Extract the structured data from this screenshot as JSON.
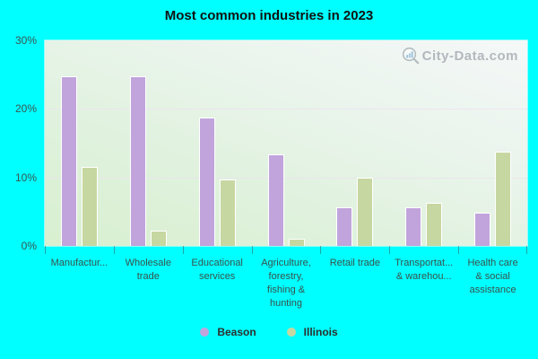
{
  "title": "Most common industries in 2023",
  "watermark": {
    "text": "City-Data.com",
    "icon": "magnifier-bar-chart-icon"
  },
  "colors": {
    "page_background": "#00ffff",
    "beason_bar": "#c1a4dc",
    "illinois_bar": "#c7d7a1",
    "grid_line": "#ebe3ee",
    "axis_text": "#3b514c",
    "watermark_text": "#a7aeb4"
  },
  "y_axis": {
    "tick_labels": [
      "30%",
      "20%",
      "10%",
      "0%"
    ],
    "tick_positions_pct": [
      0,
      33.33,
      66.67,
      100
    ]
  },
  "legend": {
    "items": [
      {
        "label": "Beason",
        "color": "#c1a4dc"
      },
      {
        "label": "Illinois",
        "color": "#c7d7a1"
      }
    ]
  },
  "chart_data": {
    "type": "bar",
    "title": "Most common industries in 2023",
    "categories": [
      "Manufactur...",
      "Wholesale trade",
      "Educational services",
      "Agriculture, forestry, fishing & hunting",
      "Retail trade",
      "Transportat... & warehou...",
      "Health care & social assistance"
    ],
    "display_labels": [
      "Manufactur...",
      "Wholesale\ntrade",
      "Educational\nservices",
      "Agriculture,\nforestry,\nfishing &\nhunting",
      "Retail trade",
      "Transportat...\n& warehou...",
      "Health care\n& social\nassistance"
    ],
    "series": [
      {
        "name": "Beason",
        "color": "#c1a4dc",
        "values": [
          24.8,
          24.8,
          18.8,
          13.3,
          5.6,
          5.7,
          4.8
        ]
      },
      {
        "name": "Illinois",
        "color": "#c7d7a1",
        "values": [
          11.5,
          2.2,
          9.7,
          1.0,
          10.0,
          6.3,
          13.7
        ]
      }
    ],
    "ylabel": "",
    "xlabel": "",
    "ylim": [
      0,
      30
    ],
    "ytick_interval": 10,
    "grid": "horizontal",
    "legend_position": "bottom"
  }
}
